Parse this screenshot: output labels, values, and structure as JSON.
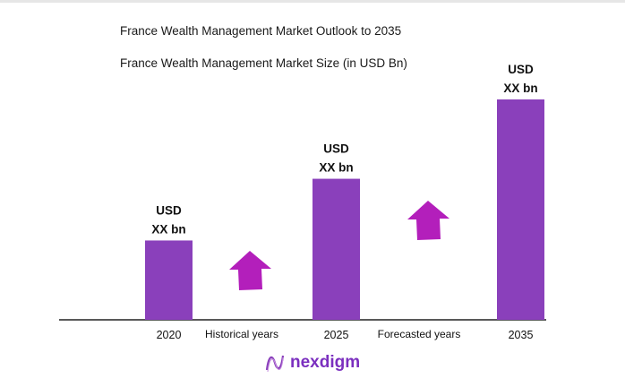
{
  "chart_data": {
    "type": "bar",
    "title": "France Wealth Management Market Outlook to 2035",
    "subtitle": "France Wealth Management Market Size (in USD Bn)",
    "categories": [
      "2020",
      "2025",
      "2035"
    ],
    "values": [
      36,
      64,
      100
    ],
    "data_labels": [
      [
        "USD",
        "XX bn"
      ],
      [
        "USD",
        "XX bn"
      ],
      [
        "USD",
        "XX bn"
      ]
    ],
    "annotations": [
      "Historical years",
      "Forecasted years"
    ],
    "bar_color": "#8a40bb",
    "arrow_color": "#b31fbb",
    "grid": false,
    "xlabel": "",
    "ylabel": ""
  },
  "logo": {
    "text": "nexdigm",
    "color": "#7b2fbf"
  }
}
